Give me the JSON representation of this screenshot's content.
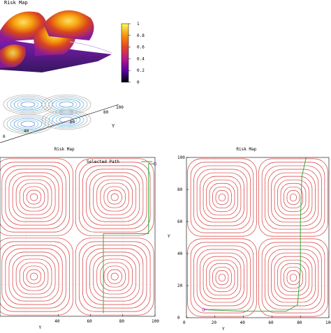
{
  "figure": {
    "panels": [
      "surface",
      "left",
      "right"
    ]
  },
  "chart_data": [
    {
      "id": "surface",
      "type": "heatmap",
      "title": "Risk Map",
      "xlabel": "",
      "ylabel": "Y",
      "colorbar": {
        "ticks": [
          "1",
          "0.8",
          "0.6",
          "0.4",
          "0.2",
          "0"
        ],
        "range": [
          0,
          1
        ],
        "colors": [
          "#000000",
          "#5a00a8",
          "#b51a8c",
          "#e2452b",
          "#f88a0b",
          "#f7d23a",
          "#ffff60"
        ]
      },
      "base_ticks": [
        "0",
        "40",
        "60",
        "80",
        "100"
      ]
    },
    {
      "id": "left",
      "type": "line",
      "title": "Risk Map",
      "legend": "Selected Path",
      "xlabel": "Y",
      "ylabel": "",
      "xlim": [
        0,
        100
      ],
      "ylim": [
        0,
        100
      ],
      "xticks": [
        "40",
        "60",
        "80",
        "100"
      ],
      "colors": {
        "contour": "#d93b3b",
        "path": "#2fae3f",
        "grid": "#c8c8c8",
        "endpoint": "#b050d0"
      },
      "path": [
        [
          100,
          96
        ],
        [
          96,
          96
        ],
        [
          96,
          52
        ],
        [
          68,
          52
        ],
        [
          68,
          2
        ]
      ]
    },
    {
      "id": "right",
      "type": "line",
      "title": "Risk Map",
      "xlabel": "Y",
      "ylabel": "Y",
      "xlim": [
        0,
        100
      ],
      "ylim": [
        0,
        100
      ],
      "xticks": [
        "0",
        "20",
        "40",
        "60",
        "80",
        "100"
      ],
      "yticks": [
        "0",
        "20",
        "40",
        "60",
        "80",
        "100"
      ],
      "colors": {
        "contour": "#d93b3b",
        "path": "#2fae3f",
        "grid": "#c8c8c8",
        "endpoint": "#b050d0"
      },
      "path": [
        [
          12,
          5
        ],
        [
          40,
          4
        ],
        [
          70,
          4
        ],
        [
          78,
          8
        ],
        [
          80,
          30
        ],
        [
          80,
          60
        ],
        [
          81,
          88
        ],
        [
          84,
          100
        ]
      ]
    }
  ]
}
